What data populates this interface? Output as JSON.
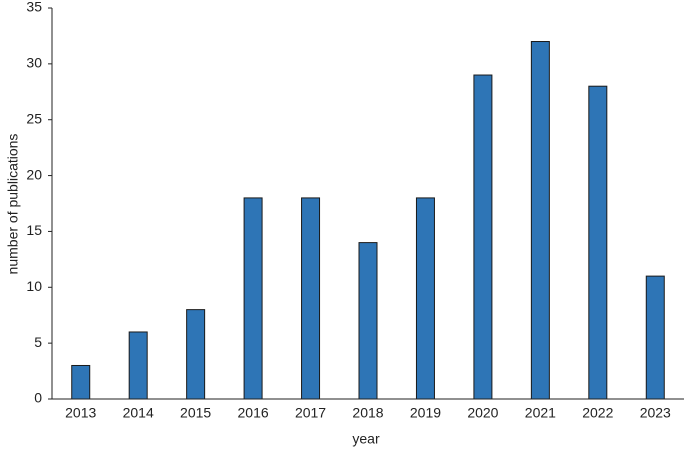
{
  "chart_data": {
    "type": "bar",
    "x_label": "year",
    "y_label": "number of publications",
    "categories": [
      "2013",
      "2014",
      "2015",
      "2016",
      "2017",
      "2018",
      "2019",
      "2020",
      "2021",
      "2022",
      "2023"
    ],
    "values": [
      3,
      6,
      8,
      18,
      18,
      14,
      18,
      29,
      32,
      28,
      11
    ],
    "color": "#2e75b6",
    "ylim": [
      0,
      35
    ],
    "yticks": [
      0,
      5,
      10,
      15,
      20,
      25,
      30,
      35
    ],
    "grid": false
  }
}
